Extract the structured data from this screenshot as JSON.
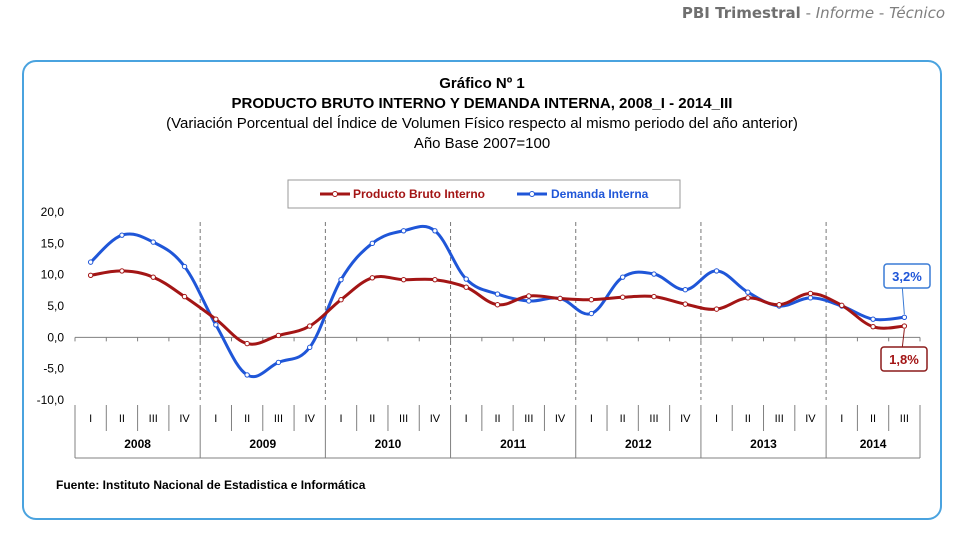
{
  "header": {
    "strong": "PBI Trimestral",
    "sep1": " - ",
    "part2": "Informe",
    "sep2": " - ",
    "part3": "Técnico"
  },
  "chart_data": {
    "type": "line",
    "title": "Gráfico Nº 1",
    "subtitle": "PRODUCTO BRUTO INTERNO Y DEMANDA INTERNA, 2008_I - 2014_III",
    "subtitle2": "(Variación Porcentual del Índice de Volumen Físico respecto al mismo periodo del año anterior)",
    "subtitle3": "Año Base 2007=100",
    "xlabel": "",
    "ylabel": "",
    "ylim": [
      -10,
      20
    ],
    "yticks": [
      "20,0",
      "15,0",
      "10,0",
      "5,0",
      "0,0",
      "-5,0",
      "-10,0"
    ],
    "categories": [
      "2008_I",
      "2008_II",
      "2008_III",
      "2008_IV",
      "2009_I",
      "2009_II",
      "2009_III",
      "2009_IV",
      "2010_I",
      "2010_II",
      "2010_III",
      "2010_IV",
      "2011_I",
      "2011_II",
      "2011_III",
      "2011_IV",
      "2012_I",
      "2012_II",
      "2012_III",
      "2012_IV",
      "2013_I",
      "2013_II",
      "2013_III",
      "2013_IV",
      "2014_I",
      "2014_II",
      "2014_III"
    ],
    "quarter_labels": [
      "I",
      "II",
      "III",
      "IV",
      "I",
      "II",
      "III",
      "IV",
      "I",
      "II",
      "III",
      "IV",
      "I",
      "II",
      "III",
      "IV",
      "I",
      "II",
      "III",
      "IV",
      "I",
      "II",
      "III",
      "IV",
      "I",
      "II",
      "III"
    ],
    "years": [
      "2008",
      "2009",
      "2010",
      "2011",
      "2012",
      "2013",
      "2014"
    ],
    "series": [
      {
        "name": "Producto Bruto Interno",
        "color": "#a31515",
        "values": [
          9.9,
          10.6,
          9.6,
          6.5,
          2.9,
          -1.0,
          0.3,
          1.8,
          6.0,
          9.5,
          9.2,
          9.2,
          8.0,
          5.2,
          6.6,
          6.2,
          6.0,
          6.4,
          6.5,
          5.3,
          4.5,
          6.3,
          5.2,
          7.0,
          5.1,
          1.7,
          1.8
        ]
      },
      {
        "name": "Demanda Interna",
        "color": "#1f56d8",
        "values": [
          12.0,
          16.3,
          15.2,
          11.3,
          2.0,
          -6.0,
          -4.0,
          -1.6,
          9.2,
          15.0,
          17.0,
          17.0,
          9.3,
          6.9,
          5.8,
          6.2,
          3.8,
          9.6,
          10.1,
          7.6,
          10.6,
          7.2,
          5.0,
          6.3,
          5.0,
          2.9,
          3.2
        ]
      }
    ],
    "annotations": {
      "demanda_last": "3,2%",
      "pbi_last": "1,8%"
    },
    "legend_position": "top-center",
    "grid": false
  },
  "source": "Fuente: Instituto Nacional de Estadistica e Informática"
}
